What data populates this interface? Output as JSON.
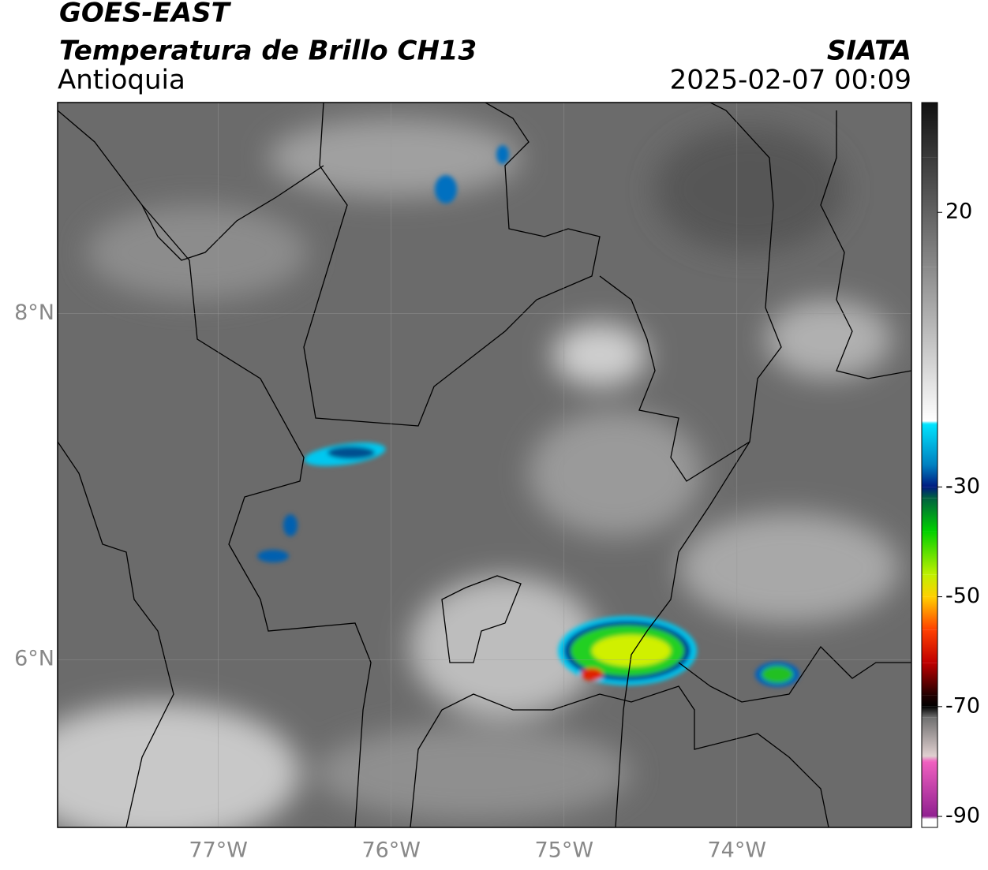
{
  "chart_data": {
    "type": "map",
    "title": "GOES-EAST",
    "subtitle": "Temperatura de Brillo CH13",
    "region": "Antioquia",
    "source": "SIATA",
    "timestamp": "2025-02-07 00:09",
    "xlim": [
      -77.93,
      -72.99
    ],
    "ylim": [
      5.03,
      9.22
    ],
    "xticks": [
      {
        "value": -77,
        "label": "77°W"
      },
      {
        "value": -76,
        "label": "76°W"
      },
      {
        "value": -75,
        "label": "75°W"
      },
      {
        "value": -74,
        "label": "74°W"
      }
    ],
    "yticks": [
      {
        "value": 8,
        "label": "8°N"
      },
      {
        "value": 6,
        "label": "6°N"
      }
    ],
    "grid": true,
    "colorbar": {
      "lim": [
        -92,
        40
      ],
      "ticks": [
        20,
        -30,
        -50,
        -70,
        -90
      ],
      "colormap": [
        {
          "value": 40,
          "color": "#111111"
        },
        {
          "value": 30,
          "color": "#3a3a3a"
        },
        {
          "value": 10,
          "color": "#8a8a8a"
        },
        {
          "value": -18,
          "color": "#ffffff"
        },
        {
          "value": -18.5,
          "color": "#00e5ff"
        },
        {
          "value": -26,
          "color": "#0080c0"
        },
        {
          "value": -30,
          "color": "#001a80"
        },
        {
          "value": -32,
          "color": "#006040"
        },
        {
          "value": -38,
          "color": "#00d000"
        },
        {
          "value": -46,
          "color": "#c0f000"
        },
        {
          "value": -50,
          "color": "#ffd000"
        },
        {
          "value": -56,
          "color": "#ff4000"
        },
        {
          "value": -62,
          "color": "#c00000"
        },
        {
          "value": -68,
          "color": "#200000"
        },
        {
          "value": -70,
          "color": "#000000"
        },
        {
          "value": -72,
          "color": "#707070"
        },
        {
          "value": -79,
          "color": "#e0d0d0"
        },
        {
          "value": -80,
          "color": "#f060c0"
        },
        {
          "value": -90,
          "color": "#902090"
        },
        {
          "value": -90.5,
          "color": "#ffffff"
        },
        {
          "value": -92,
          "color": "#ffffff"
        }
      ]
    }
  }
}
